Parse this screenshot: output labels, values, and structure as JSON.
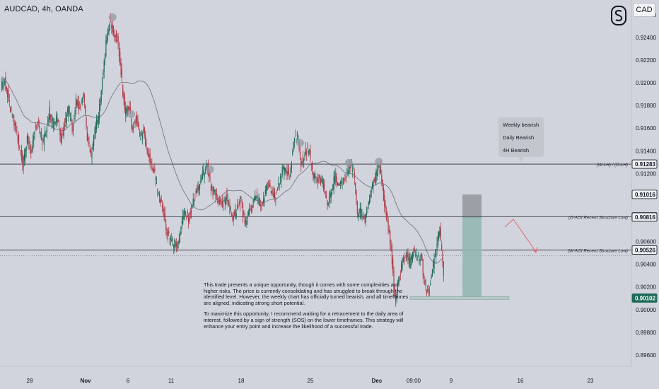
{
  "header": {
    "title": "AUDCAD, 4h, OANDA"
  },
  "currency_button": {
    "label": "CAD"
  },
  "logo_icon": "s-logo-icon",
  "chart_data": {
    "type": "candlestick",
    "symbol": "AUDCAD",
    "timeframe": "4h",
    "source": "OANDA",
    "ylim": [
      0.895,
      0.9273
    ],
    "y_ticks": [
      "0.92600",
      "0.92400",
      "0.92200",
      "0.92000",
      "0.91800",
      "0.91600",
      "0.91400",
      "0.91200",
      "0.90600",
      "0.90400",
      "0.90200",
      "0.90000",
      "0.89800",
      "0.89600"
    ],
    "x_ticks": [
      "28",
      "Nov",
      "6",
      "11",
      "18",
      "25",
      "Dec",
      "09:00",
      "9",
      "16",
      "23"
    ],
    "price_labels": [
      {
        "text": "0.91283",
        "price": 0.91283,
        "style": "dark"
      },
      {
        "text": "0.91016",
        "price": 0.91016,
        "style": "dark"
      },
      {
        "text": "0.90818",
        "price": 0.90818,
        "style": "dark"
      },
      {
        "text": "0.90816",
        "price": 0.90816,
        "style": "dark"
      },
      {
        "text": "0.90526",
        "price": 0.90526,
        "style": "dark"
      },
      {
        "text": "0.90102",
        "price": 0.90102,
        "style": "green"
      }
    ],
    "levels": [
      {
        "label": "(W-LH) / (D-LH)",
        "price": 0.91283
      },
      {
        "label": "(D-AOI Recent Structure Low)",
        "price": 0.90818
      },
      {
        "label": "(W-AOI Recent Structure Low)",
        "price": 0.90526
      }
    ],
    "close_line": 0.90475,
    "position": {
      "stop": 0.91016,
      "entry": 0.90818,
      "target": 0.90102
    },
    "candle_seed": 20241203,
    "candle_path": [
      0.9196,
      0.9202,
      0.9187,
      0.917,
      0.916,
      0.9142,
      0.9128,
      0.9152,
      0.9138,
      0.916,
      0.9165,
      0.9145,
      0.9158,
      0.9175,
      0.9162,
      0.917,
      0.915,
      0.9163,
      0.9178,
      0.916,
      0.9183,
      0.9178,
      0.919,
      0.915,
      0.9135,
      0.9158,
      0.917,
      0.9205,
      0.9235,
      0.9255,
      0.9245,
      0.924,
      0.921,
      0.9175,
      0.9179,
      0.916,
      0.9172,
      0.915,
      0.9158,
      0.914,
      0.9128,
      0.912,
      0.91,
      0.9092,
      0.9072,
      0.9063,
      0.9058,
      0.9055,
      0.9074,
      0.9086,
      0.9081,
      0.9093,
      0.9105,
      0.9112,
      0.912,
      0.9126,
      0.9108,
      0.9103,
      0.9096,
      0.9092,
      0.9102,
      0.9088,
      0.9082,
      0.909,
      0.9096,
      0.9076,
      0.9086,
      0.909,
      0.91,
      0.9094,
      0.9096,
      0.9112,
      0.9106,
      0.9098,
      0.911,
      0.9122,
      0.9125,
      0.9118,
      0.9148,
      0.9155,
      0.913,
      0.9138,
      0.9142,
      0.912,
      0.9113,
      0.9116,
      0.911,
      0.9094,
      0.9102,
      0.9118,
      0.9108,
      0.9112,
      0.9119,
      0.9128,
      0.9122,
      0.9085,
      0.9086,
      0.9078,
      0.9095,
      0.911,
      0.9118,
      0.9126,
      0.91,
      0.9078,
      0.9055,
      0.901,
      0.9025,
      0.9042,
      0.905,
      0.904,
      0.9052,
      0.9045,
      0.9048,
      0.902,
      0.9014,
      0.9035,
      0.9052,
      0.907,
      0.903
    ],
    "peak_markers": [
      29,
      34,
      55,
      79,
      92,
      100
    ]
  },
  "tooltip": {
    "line1": "Weekly bearish",
    "line2": "Daily Bearish",
    "line3": "4H Bearish"
  },
  "note": {
    "p1": "This trade presents a unique opportunity, though it comes with some complexities and higher risks. The price is currently consolidating and has struggled to break through the identified level. However, the weekly chart has officially turned bearish, and all timeframes are aligned, indicating strong short potential.",
    "p2": "To maximize this opportunity, I recommend waiting for a retracement to the daily area of interest, followed by a sign of strength (SOS) on the lower timeframes. This strategy will enhance your entry point and increase the likelihood of a successful trade."
  }
}
